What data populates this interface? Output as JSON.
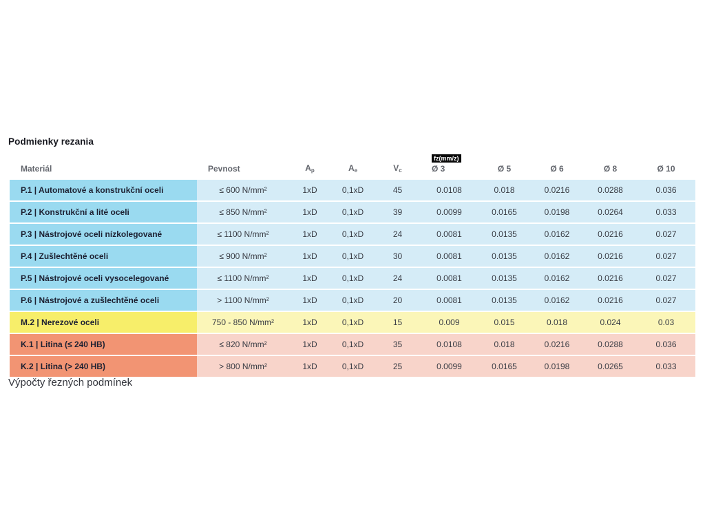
{
  "page": {
    "title": "Podmienky rezania",
    "footer": "Výpočty řezných podmínek"
  },
  "table": {
    "fz_badge": "fz(mm/z)",
    "headers": {
      "material": "Materiál",
      "pevnost": "Pevnost",
      "ap_main": "A",
      "ap_sub": "p",
      "ae_main": "A",
      "ae_sub": "e",
      "vc_main": "V",
      "vc_sub": "c",
      "d3": "Ø 3",
      "d5": "Ø 5",
      "d6": "Ø 6",
      "d8": "Ø 8",
      "d10": "Ø 10"
    },
    "colors": {
      "p_dark": "#9adaf0",
      "p_light": "#d5ecf7",
      "m_dark": "#f7ee6a",
      "m_light": "#fbf6b8",
      "k_dark": "#f29473",
      "k_light": "#f8d4ca"
    },
    "rows": [
      {
        "group": "p",
        "material": "P.1 | Automatové a konstrukční oceli",
        "pevnost": "≤ 600 N/mm²",
        "ap": "1xD",
        "ae": "0,1xD",
        "vc": "45",
        "d3": "0.0108",
        "d5": "0.018",
        "d6": "0.0216",
        "d8": "0.0288",
        "d10": "0.036"
      },
      {
        "group": "p",
        "material": "P.2 | Konstrukční a lité oceli",
        "pevnost": "≤ 850 N/mm²",
        "ap": "1xD",
        "ae": "0,1xD",
        "vc": "39",
        "d3": "0.0099",
        "d5": "0.0165",
        "d6": "0.0198",
        "d8": "0.0264",
        "d10": "0.033"
      },
      {
        "group": "p",
        "material": "P.3 | Nástrojové oceli nízkolegované",
        "pevnost": "≤ 1100 N/mm²",
        "ap": "1xD",
        "ae": "0,1xD",
        "vc": "24",
        "d3": "0.0081",
        "d5": "0.0135",
        "d6": "0.0162",
        "d8": "0.0216",
        "d10": "0.027"
      },
      {
        "group": "p",
        "material": "P.4 | Zušlechtěné oceli",
        "pevnost": "≤ 900 N/mm²",
        "ap": "1xD",
        "ae": "0,1xD",
        "vc": "30",
        "d3": "0.0081",
        "d5": "0.0135",
        "d6": "0.0162",
        "d8": "0.0216",
        "d10": "0.027"
      },
      {
        "group": "p",
        "material": "P.5 | Nástrojové oceli vysocelegované",
        "pevnost": "≤ 1100 N/mm²",
        "ap": "1xD",
        "ae": "0,1xD",
        "vc": "24",
        "d3": "0.0081",
        "d5": "0.0135",
        "d6": "0.0162",
        "d8": "0.0216",
        "d10": "0.027"
      },
      {
        "group": "p",
        "material": "P.6 | Nástrojové a zušlechtěné oceli",
        "pevnost": "> 1100 N/mm²",
        "ap": "1xD",
        "ae": "0,1xD",
        "vc": "20",
        "d3": "0.0081",
        "d5": "0.0135",
        "d6": "0.0162",
        "d8": "0.0216",
        "d10": "0.027"
      },
      {
        "group": "m",
        "material": "M.2 | Nerezové oceli",
        "pevnost": "750 - 850 N/mm²",
        "ap": "1xD",
        "ae": "0,1xD",
        "vc": "15",
        "d3": "0.009",
        "d5": "0.015",
        "d6": "0.018",
        "d8": "0.024",
        "d10": "0.03"
      },
      {
        "group": "k",
        "material": "K.1 | Litina (≤ 240 HB)",
        "pevnost": "≤ 820 N/mm²",
        "ap": "1xD",
        "ae": "0,1xD",
        "vc": "35",
        "d3": "0.0108",
        "d5": "0.018",
        "d6": "0.0216",
        "d8": "0.0288",
        "d10": "0.036"
      },
      {
        "group": "k",
        "material": "K.2 | Litina (> 240 HB)",
        "pevnost": "> 800 N/mm²",
        "ap": "1xD",
        "ae": "0,1xD",
        "vc": "25",
        "d3": "0.0099",
        "d5": "0.0165",
        "d6": "0.0198",
        "d8": "0.0265",
        "d10": "0.033"
      }
    ]
  }
}
